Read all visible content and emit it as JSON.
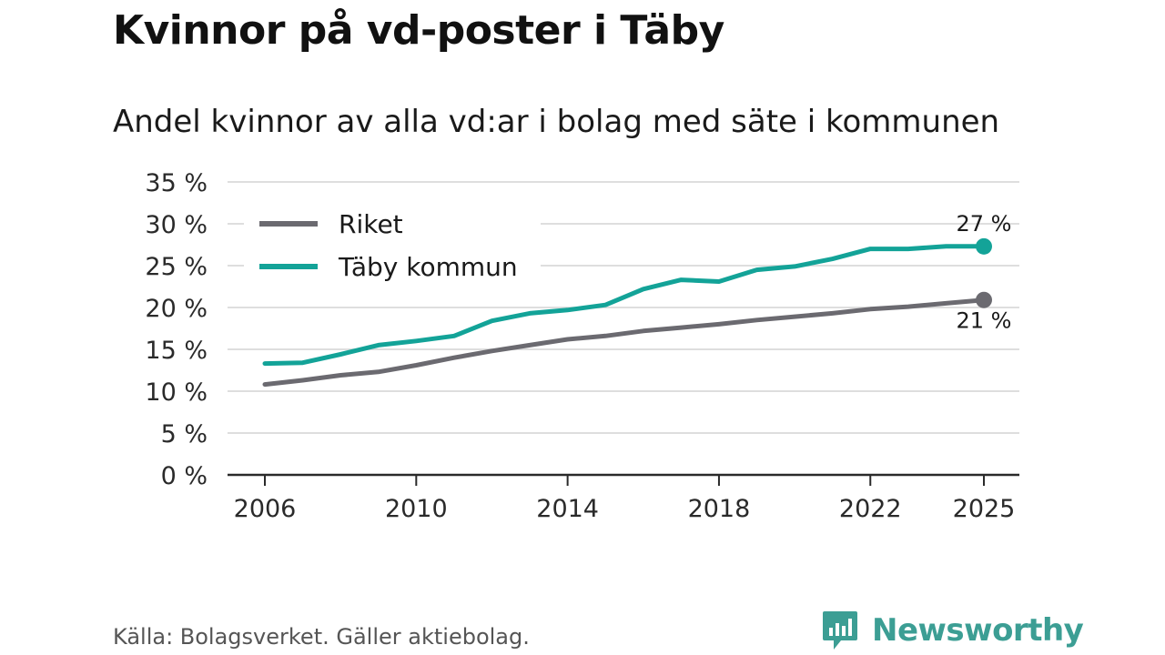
{
  "title": "Kvinnor på vd-poster i Täby",
  "subtitle": "Andel kvinnor av alla vd:ar i bolag med säte i kommunen",
  "source": "Källa: Bolagsverket. Gäller aktiebolag.",
  "brand": {
    "name": "Newsworthy",
    "color": "#3c9e94"
  },
  "chart_data": {
    "type": "line",
    "title": "Kvinnor på vd-poster i Täby",
    "subtitle": "Andel kvinnor av alla vd:ar i bolag med säte i kommunen",
    "xlabel": "",
    "ylabel": "",
    "x": [
      2006,
      2007,
      2008,
      2009,
      2010,
      2011,
      2012,
      2013,
      2014,
      2015,
      2016,
      2017,
      2018,
      2019,
      2020,
      2021,
      2022,
      2023,
      2024,
      2025
    ],
    "xticks": [
      2006,
      2010,
      2014,
      2018,
      2022,
      2025
    ],
    "xtick_labels": [
      "2006",
      "2010",
      "2014",
      "2018",
      "2022",
      "2025"
    ],
    "xlim": [
      2006,
      2025
    ],
    "ylim": [
      0,
      35
    ],
    "yticks": [
      0,
      5,
      10,
      15,
      20,
      25,
      30,
      35
    ],
    "ytick_labels": [
      "0 %",
      "5 %",
      "10 %",
      "15 %",
      "20 %",
      "25 %",
      "30 %",
      "35 %"
    ],
    "grid": true,
    "legend_position": "top-left",
    "series": [
      {
        "name": "Riket",
        "color": "#6b6a70",
        "values": [
          10.8,
          11.3,
          11.9,
          12.3,
          13.1,
          14.0,
          14.8,
          15.5,
          16.2,
          16.6,
          17.2,
          17.6,
          18.0,
          18.5,
          18.9,
          19.3,
          19.8,
          20.1,
          20.5,
          20.9
        ],
        "end_label": "21 %"
      },
      {
        "name": "Täby kommun",
        "color": "#13a398",
        "values": [
          13.3,
          13.4,
          14.4,
          15.5,
          16.0,
          16.6,
          18.4,
          19.3,
          19.7,
          20.3,
          22.2,
          23.3,
          23.1,
          24.5,
          24.9,
          25.8,
          27.0,
          27.0,
          27.3,
          27.3
        ],
        "end_label": "27 %"
      }
    ]
  }
}
